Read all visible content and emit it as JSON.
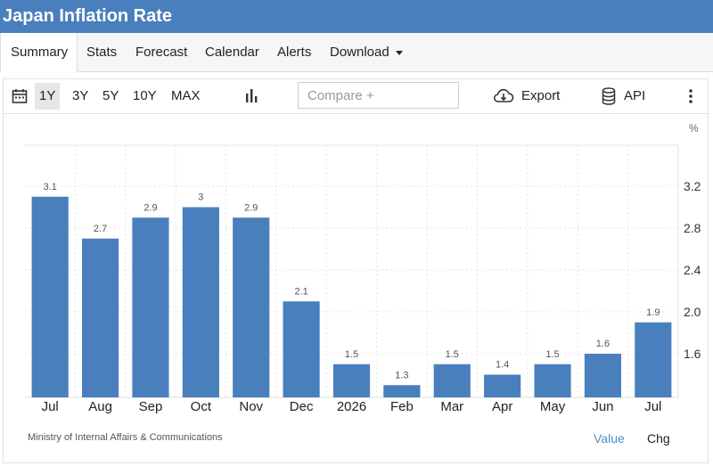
{
  "page": {
    "title": "Japan Inflation Rate"
  },
  "tabs": [
    {
      "label": "Summary",
      "active": true
    },
    {
      "label": "Stats"
    },
    {
      "label": "Forecast"
    },
    {
      "label": "Calendar"
    },
    {
      "label": "Alerts"
    },
    {
      "label": "Download",
      "dropdown": true
    }
  ],
  "toolbar": {
    "ranges": [
      "1Y",
      "3Y",
      "5Y",
      "10Y",
      "MAX"
    ],
    "active_range": "1Y",
    "compare_placeholder": "Compare +",
    "export_label": "Export",
    "api_label": "API",
    "icons": [
      "calendar-icon",
      "bar-chart-icon",
      "cloud-download-icon",
      "database-icon",
      "more-vertical-icon"
    ]
  },
  "chart_data": {
    "type": "bar",
    "categories": [
      "Jul",
      "Aug",
      "Sep",
      "Oct",
      "Nov",
      "Dec",
      "2026",
      "Feb",
      "Mar",
      "Apr",
      "May",
      "Jun",
      "Jul"
    ],
    "values": [
      3.1,
      2.7,
      2.9,
      3,
      2.9,
      2.1,
      1.5,
      1.3,
      1.5,
      1.4,
      1.5,
      1.6,
      1.9
    ],
    "data_labels": [
      "3.1",
      "2.7",
      "2.9",
      "3",
      "2.9",
      "2.1",
      "1.5",
      "1.3",
      "1.5",
      "1.4",
      "1.5",
      "1.6",
      "1.9"
    ],
    "y_ticks": [
      "3.2",
      "2.8",
      "2.4",
      "2.0",
      "1.6"
    ],
    "y_unit": "%",
    "ylim": [
      1.2,
      3.6
    ],
    "grid": true,
    "bar_color": "#4a7fbd"
  },
  "footer": {
    "source": "Ministry of Internal Affairs & Communications",
    "value_label": "Value",
    "chg_label": "Chg"
  }
}
